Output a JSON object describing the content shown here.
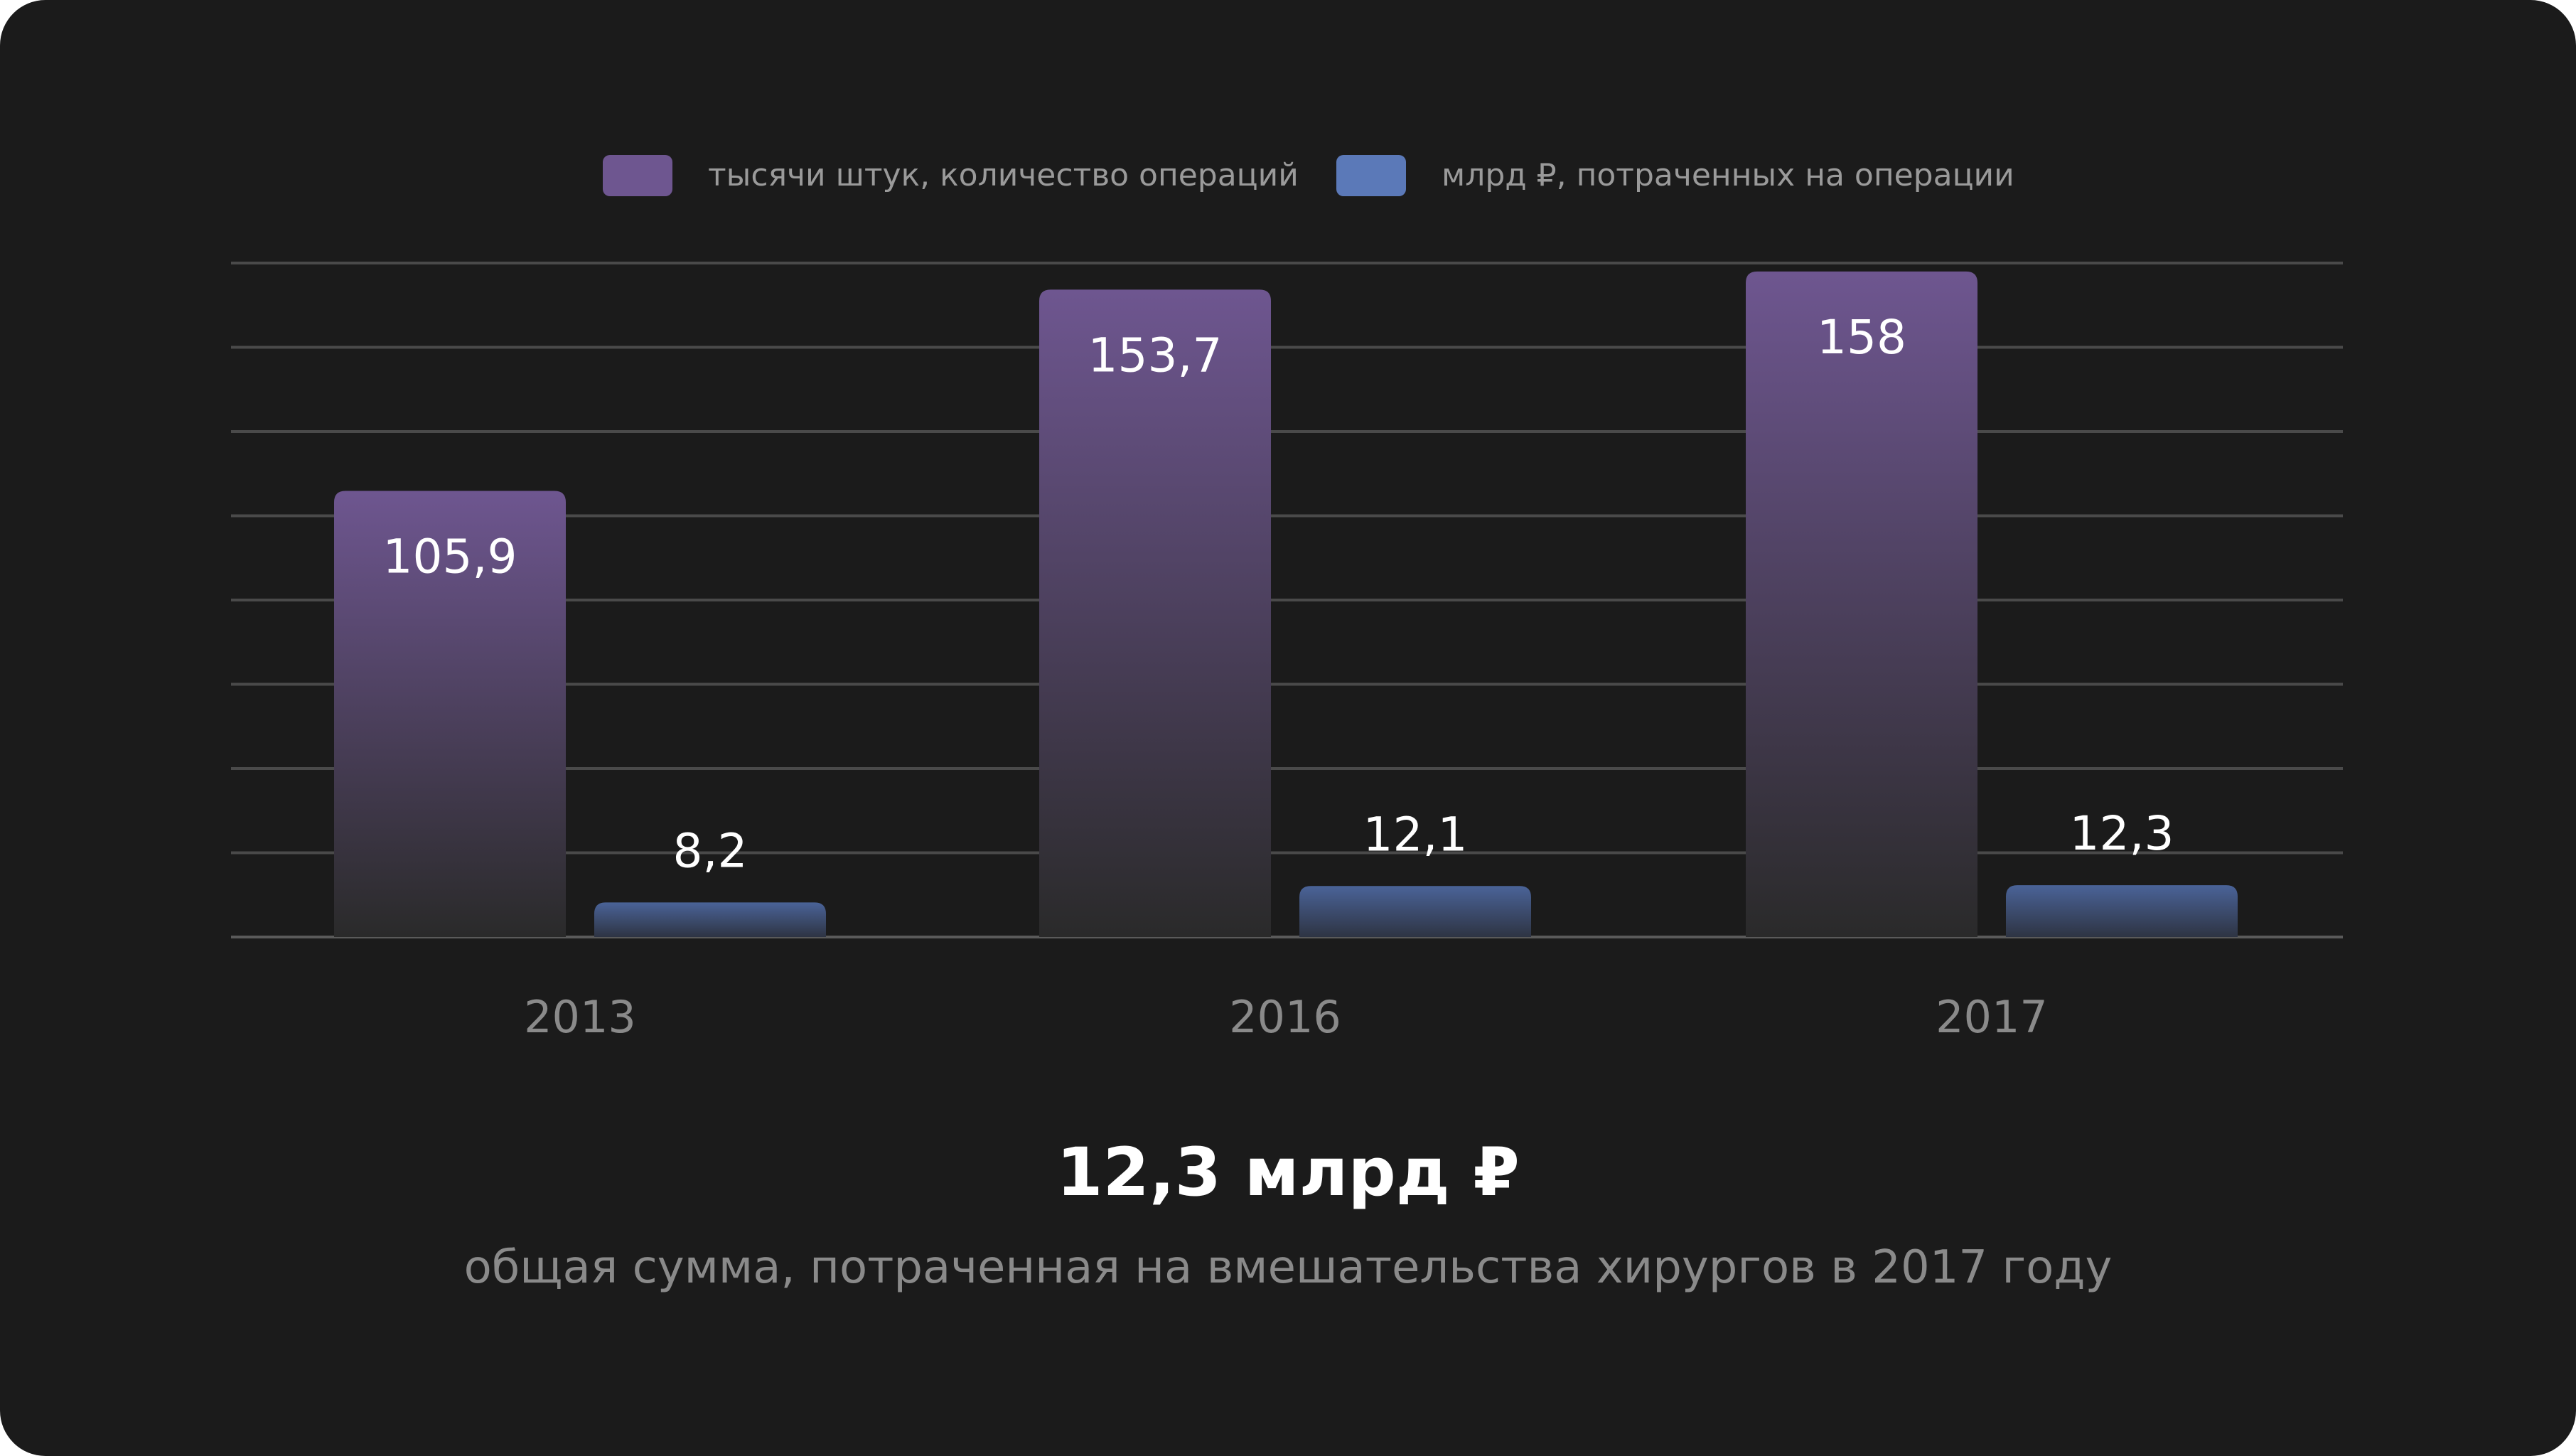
{
  "chart_data": {
    "type": "bar",
    "categories": [
      "2013",
      "2016",
      "2017"
    ],
    "series": [
      {
        "name": "тысячи штук, количество операций",
        "values": [
          105.9,
          153.7,
          158
        ],
        "labels": [
          "105,9",
          "153,7",
          "158"
        ],
        "color": "#6e5690"
      },
      {
        "name": "млрд ₽, потраченных на операции",
        "values": [
          8.2,
          12.1,
          12.3
        ],
        "labels": [
          "8,2",
          "12,1",
          "12,3"
        ],
        "color": "#5b79b8"
      }
    ],
    "ylim": [
      0,
      160
    ],
    "grid": true,
    "legend": "top-center",
    "title": "",
    "xlabel": "",
    "ylabel": ""
  },
  "summary": {
    "value": "12,3 млрд ₽",
    "caption": "общая сумма, потраченная на вмешательства хирургов в 2017 году"
  },
  "colors": {
    "background": "#1b1b1b",
    "grid": "#4a4a4a",
    "series1_top": "#6e5690",
    "series2_top": "#5b79b8",
    "bar_bottom": "#2a2a2a",
    "data_label": "#ffffff",
    "tick_label": "#8a8a8a"
  }
}
